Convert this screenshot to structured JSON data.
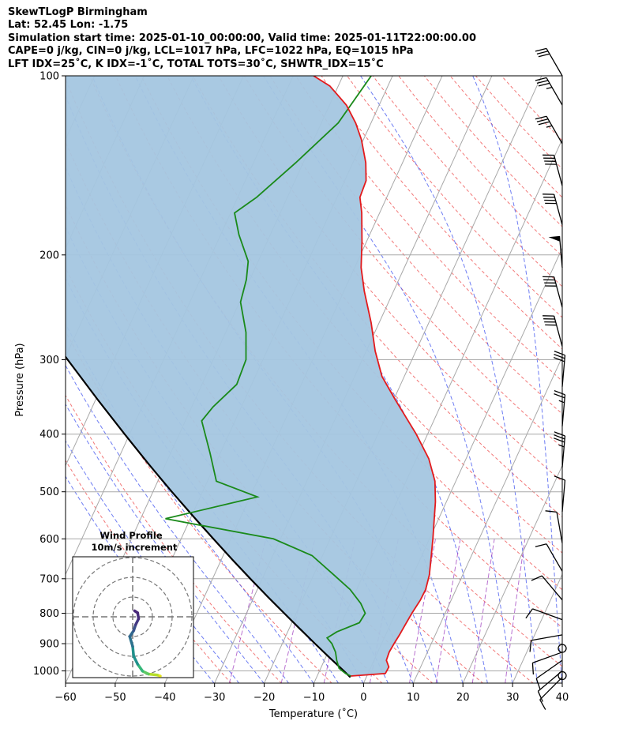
{
  "header": {
    "title": "SkewTLogP Birmingham",
    "location": "Lat: 52.45   Lon: -1.75",
    "times": "Simulation start time: 2025-01-10_00:00:00, Valid time: 2025-01-11T22:00:00.00",
    "params": "CAPE=0 j/kg, CIN=0 j/kg, LCL=1017 hPa, LFC=1022 hPa, EQ=1015 hPa",
    "indices": "LFT IDX=25˚C, K IDX=-1˚C, TOTAL TOTS=30˚C, SHWTR_IDX=15˚C"
  },
  "chart_data": {
    "type": "skewt",
    "xlabel": "Temperature (˚C)",
    "ylabel": "Pressure (hPa)",
    "xlim": [
      -60,
      40
    ],
    "ylim": [
      1050,
      100
    ],
    "xticks": [
      "−60",
      "−50",
      "−40",
      "−30",
      "−20",
      "−10",
      "0",
      "10",
      "20",
      "30",
      "40"
    ],
    "xtick_values": [
      -60,
      -50,
      -40,
      -30,
      -20,
      -10,
      0,
      10,
      20,
      30,
      40
    ],
    "yticks": [
      "1000",
      "900",
      "800",
      "700",
      "600",
      "500",
      "400",
      "300",
      "200",
      "100"
    ],
    "ytick_values": [
      1000,
      900,
      800,
      700,
      600,
      500,
      400,
      300,
      200,
      100
    ],
    "colors": {
      "temperature": "#e31a1c",
      "dewpoint": "#1a8a1a",
      "parcel": "#000000",
      "shade": "#a4c6e0",
      "isotherm": "#a8a8a8",
      "dry_adiabat": "#f06060",
      "moist_adiabat": "#4a5cf0",
      "mixing_ratio": "#a040c0"
    },
    "temperature": [
      {
        "p": 1020,
        "t": -3.2
      },
      {
        "p": 1010,
        "t": 3.5
      },
      {
        "p": 985,
        "t": 3.6
      },
      {
        "p": 960,
        "t": 2.5
      },
      {
        "p": 930,
        "t": 2.3
      },
      {
        "p": 900,
        "t": 2.5
      },
      {
        "p": 870,
        "t": 2.8
      },
      {
        "p": 840,
        "t": 3.0
      },
      {
        "p": 800,
        "t": 3.3
      },
      {
        "p": 760,
        "t": 3.8
      },
      {
        "p": 730,
        "t": 3.9
      },
      {
        "p": 690,
        "t": 3.3
      },
      {
        "p": 650,
        "t": 2.2
      },
      {
        "p": 600,
        "t": 0.7
      },
      {
        "p": 560,
        "t": -0.7
      },
      {
        "p": 520,
        "t": -2.2
      },
      {
        "p": 480,
        "t": -4.2
      },
      {
        "p": 440,
        "t": -7.5
      },
      {
        "p": 400,
        "t": -12.3
      },
      {
        "p": 350,
        "t": -19.7
      },
      {
        "p": 320,
        "t": -24.5
      },
      {
        "p": 290,
        "t": -28.2
      },
      {
        "p": 260,
        "t": -31.6
      },
      {
        "p": 230,
        "t": -35.9
      },
      {
        "p": 210,
        "t": -38.7
      },
      {
        "p": 190,
        "t": -40.9
      },
      {
        "p": 170,
        "t": -43.6
      },
      {
        "p": 160,
        "t": -45.4
      },
      {
        "p": 150,
        "t": -45.7
      },
      {
        "p": 140,
        "t": -47.4
      },
      {
        "p": 128,
        "t": -50.4
      },
      {
        "p": 120,
        "t": -53.1
      },
      {
        "p": 112,
        "t": -56.6
      },
      {
        "p": 104,
        "t": -61.7
      },
      {
        "p": 100,
        "t": -65.9
      }
    ],
    "dewpoint": [
      {
        "p": 1020,
        "t": -3.2
      },
      {
        "p": 1010,
        "t": -4.5
      },
      {
        "p": 990,
        "t": -6.3
      },
      {
        "p": 960,
        "t": -7.5
      },
      {
        "p": 930,
        "t": -8.5
      },
      {
        "p": 900,
        "t": -10.0
      },
      {
        "p": 880,
        "t": -11.5
      },
      {
        "p": 860,
        "t": -10.1
      },
      {
        "p": 830,
        "t": -6.4
      },
      {
        "p": 800,
        "t": -6.1
      },
      {
        "p": 770,
        "t": -7.9
      },
      {
        "p": 730,
        "t": -11.3
      },
      {
        "p": 690,
        "t": -15.9
      },
      {
        "p": 640,
        "t": -22.1
      },
      {
        "p": 600,
        "t": -31.4
      },
      {
        "p": 555,
        "t": -55.0
      },
      {
        "p": 510,
        "t": -38.5
      },
      {
        "p": 480,
        "t": -48.2
      },
      {
        "p": 430,
        "t": -52.1
      },
      {
        "p": 380,
        "t": -56.7
      },
      {
        "p": 360,
        "t": -55.7
      },
      {
        "p": 330,
        "t": -53.0
      },
      {
        "p": 300,
        "t": -53.4
      },
      {
        "p": 270,
        "t": -55.9
      },
      {
        "p": 240,
        "t": -59.8
      },
      {
        "p": 220,
        "t": -60.7
      },
      {
        "p": 205,
        "t": -62.0
      },
      {
        "p": 185,
        "t": -66.3
      },
      {
        "p": 170,
        "t": -69.2
      },
      {
        "p": 160,
        "t": -66.2
      },
      {
        "p": 140,
        "t": -61.5
      },
      {
        "p": 120,
        "t": -56.6
      },
      {
        "p": 100,
        "t": -54.3
      }
    ],
    "parcel": [
      {
        "p": 1025,
        "t": -3.2
      },
      {
        "p": 1000,
        "t": -5.1
      },
      {
        "p": 950,
        "t": -9.2
      },
      {
        "p": 900,
        "t": -13.4
      },
      {
        "p": 850,
        "t": -17.8
      },
      {
        "p": 800,
        "t": -22.4
      },
      {
        "p": 750,
        "t": -27.3
      },
      {
        "p": 700,
        "t": -32.4
      },
      {
        "p": 650,
        "t": -37.8
      },
      {
        "p": 600,
        "t": -43.5
      },
      {
        "p": 550,
        "t": -49.6
      },
      {
        "p": 500,
        "t": -56.2
      },
      {
        "p": 450,
        "t": -63.3
      },
      {
        "p": 400,
        "t": -71.0
      },
      {
        "p": 350,
        "t": -79.6
      },
      {
        "p": 300,
        "t": -89.3
      },
      {
        "p": 250,
        "t": -100.6
      },
      {
        "p": 200,
        "t": -114.0
      },
      {
        "p": 150,
        "t": -131.0
      },
      {
        "p": 100,
        "t": -155.4
      }
    ],
    "wind_barbs": [
      {
        "p": 1025,
        "speed": 10,
        "dir": 225
      },
      {
        "p": 1000,
        "speed": 10,
        "dir": 230
      },
      {
        "p": 960,
        "speed": 10,
        "dir": 235
      },
      {
        "p": 930,
        "speed": 10,
        "dir": 250
      },
      {
        "p": 870,
        "speed": 10,
        "dir": 260
      },
      {
        "p": 820,
        "speed": 10,
        "dir": 290
      },
      {
        "p": 760,
        "speed": 10,
        "dir": 320
      },
      {
        "p": 680,
        "speed": 10,
        "dir": 330
      },
      {
        "p": 610,
        "speed": 10,
        "dir": 350
      },
      {
        "p": 540,
        "speed": 10,
        "dir": 5
      },
      {
        "p": 455,
        "speed": 35,
        "dir": 5
      },
      {
        "p": 388,
        "speed": 25,
        "dir": 5
      },
      {
        "p": 333,
        "speed": 30,
        "dir": 5
      },
      {
        "p": 285,
        "speed": 40,
        "dir": 345
      },
      {
        "p": 245,
        "speed": 40,
        "dir": 345
      },
      {
        "p": 210,
        "speed": 50,
        "dir": 355
      },
      {
        "p": 178,
        "speed": 40,
        "dir": 345
      },
      {
        "p": 153,
        "speed": 40,
        "dir": 345
      },
      {
        "p": 130,
        "speed": 35,
        "dir": 330
      },
      {
        "p": 112,
        "speed": 35,
        "dir": 330
      },
      {
        "p": 100,
        "speed": 30,
        "dir": 330
      }
    ],
    "calm_levels": [
      900,
      1000
    ],
    "hodograph": {
      "title": "Wind Profile",
      "subtitle": "10m/s increment",
      "rings": [
        10,
        20,
        30
      ],
      "points": [
        {
          "u": 14.0,
          "v": -30.0,
          "c": "#e4e41c"
        },
        {
          "u": 12.5,
          "v": -29.5,
          "c": "#b5dd2b"
        },
        {
          "u": 8.0,
          "v": -29.0,
          "c": "#5ec962"
        },
        {
          "u": 5.0,
          "v": -27.5,
          "c": "#35b779"
        },
        {
          "u": 2.5,
          "v": -24.0,
          "c": "#21918c"
        },
        {
          "u": 0.5,
          "v": -20.0,
          "c": "#21918c"
        },
        {
          "u": 0.0,
          "v": -15.0,
          "c": "#2c728e"
        },
        {
          "u": -1.5,
          "v": -10.0,
          "c": "#31688e"
        },
        {
          "u": 0.5,
          "v": -7.0,
          "c": "#3b528b"
        },
        {
          "u": 1.5,
          "v": -4.0,
          "c": "#443983"
        },
        {
          "u": 3.0,
          "v": -1.0,
          "c": "#472d7b"
        },
        {
          "u": 2.5,
          "v": 2.0,
          "c": "#482878"
        },
        {
          "u": 1.0,
          "v": 3.0,
          "c": "#440154"
        }
      ]
    }
  }
}
